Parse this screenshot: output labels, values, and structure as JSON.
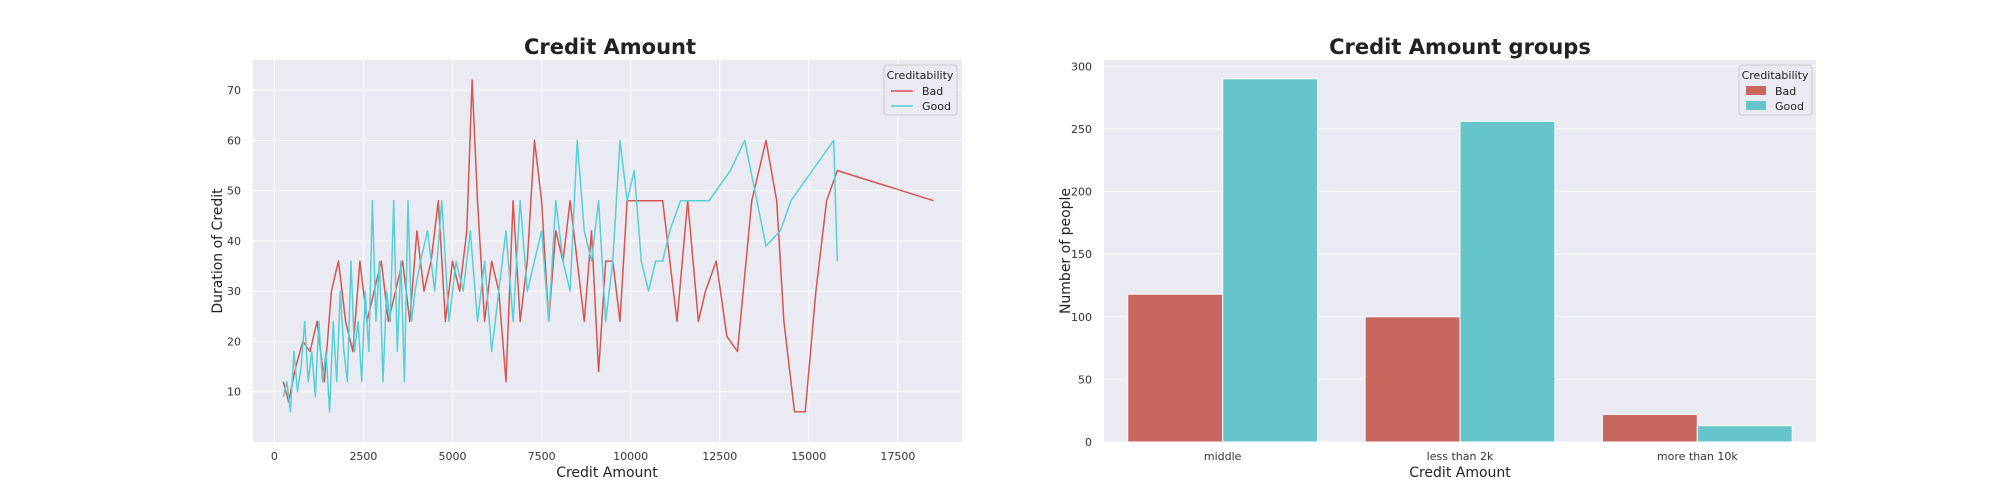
{
  "chart_data": [
    {
      "type": "line",
      "title": "Credit Amount",
      "xlabel": "Credit Amount",
      "ylabel": "Duration of Credit",
      "xlim": [
        -600,
        19300
      ],
      "ylim": [
        0,
        76
      ],
      "xticks": [
        0,
        2500,
        5000,
        7500,
        10000,
        12500,
        15000,
        17500
      ],
      "yticks": [
        10,
        20,
        30,
        40,
        50,
        60,
        70
      ],
      "grid": true,
      "legend": {
        "title": "Creditability",
        "position": "top-right"
      },
      "series": [
        {
          "name": "Bad",
          "color": "#d9534f",
          "x": [
            250,
            400,
            600,
            800,
            1000,
            1200,
            1400,
            1600,
            1800,
            2000,
            2200,
            2400,
            2600,
            2800,
            3000,
            3200,
            3400,
            3600,
            3800,
            4000,
            4200,
            4400,
            4600,
            4800,
            5000,
            5200,
            5400,
            5550,
            5700,
            5900,
            6100,
            6300,
            6500,
            6700,
            6900,
            7100,
            7300,
            7500,
            7700,
            7900,
            8100,
            8300,
            8500,
            8700,
            8900,
            9100,
            9300,
            9500,
            9700,
            9900,
            10100,
            10500,
            10900,
            11300,
            11600,
            11900,
            12100,
            12400,
            12700,
            13000,
            13400,
            13800,
            14100,
            14300,
            14600,
            14900,
            15200,
            15500,
            15800,
            18500
          ],
          "y": [
            12,
            8,
            15,
            20,
            18,
            24,
            12,
            30,
            36,
            24,
            18,
            36,
            24,
            30,
            36,
            24,
            30,
            36,
            24,
            42,
            30,
            36,
            48,
            24,
            36,
            30,
            42,
            72,
            48,
            24,
            36,
            30,
            12,
            48,
            24,
            36,
            60,
            48,
            24,
            42,
            36,
            48,
            36,
            24,
            42,
            14,
            36,
            36,
            24,
            48,
            48,
            48,
            48,
            24,
            48,
            24,
            30,
            36,
            21,
            18,
            48,
            60,
            48,
            24,
            6,
            6,
            30,
            48,
            54,
            48
          ]
        },
        {
          "name": "Good",
          "color": "#55d0d8",
          "x": [
            250,
            350,
            450,
            550,
            650,
            750,
            850,
            950,
            1050,
            1150,
            1250,
            1350,
            1450,
            1550,
            1650,
            1750,
            1850,
            1950,
            2050,
            2150,
            2250,
            2350,
            2450,
            2550,
            2650,
            2750,
            2850,
            2950,
            3050,
            3150,
            3250,
            3350,
            3450,
            3550,
            3650,
            3750,
            3850,
            3950,
            4100,
            4300,
            4500,
            4700,
            4900,
            5100,
            5300,
            5500,
            5700,
            5900,
            6100,
            6300,
            6500,
            6700,
            6900,
            7100,
            7300,
            7500,
            7700,
            7900,
            8100,
            8300,
            8500,
            8700,
            8900,
            9100,
            9300,
            9500,
            9700,
            9900,
            10100,
            10300,
            10500,
            10700,
            10900,
            11100,
            11400,
            11800,
            12200,
            12800,
            13200,
            13800,
            14200,
            14500,
            15700,
            15800
          ],
          "y": [
            9,
            12,
            6,
            18,
            10,
            15,
            24,
            12,
            18,
            9,
            24,
            12,
            18,
            6,
            24,
            12,
            30,
            18,
            12,
            36,
            18,
            24,
            12,
            30,
            18,
            48,
            24,
            36,
            12,
            30,
            24,
            48,
            18,
            36,
            12,
            48,
            24,
            30,
            36,
            42,
            30,
            48,
            24,
            36,
            30,
            42,
            24,
            36,
            18,
            30,
            42,
            24,
            48,
            30,
            36,
            42,
            24,
            48,
            36,
            30,
            60,
            42,
            36,
            48,
            24,
            36,
            60,
            48,
            54,
            36,
            30,
            36,
            36,
            42,
            48,
            48,
            48,
            54,
            60,
            39,
            42,
            48,
            60,
            36
          ]
        }
      ]
    },
    {
      "type": "bar",
      "title": "Credit Amount groups",
      "xlabel": "Credit Amount",
      "ylabel": "Number of people",
      "categories": [
        "middle",
        "less than 2k",
        "more than 10k"
      ],
      "ylim": [
        0,
        305
      ],
      "yticks": [
        0,
        50,
        100,
        150,
        200,
        250,
        300
      ],
      "grid": true,
      "legend": {
        "title": "Creditability",
        "position": "top-right"
      },
      "series": [
        {
          "name": "Bad",
          "color": "#c9675f",
          "values": [
            118,
            100,
            22
          ]
        },
        {
          "name": "Good",
          "color": "#66c5cb",
          "values": [
            290,
            256,
            13
          ]
        }
      ]
    }
  ]
}
